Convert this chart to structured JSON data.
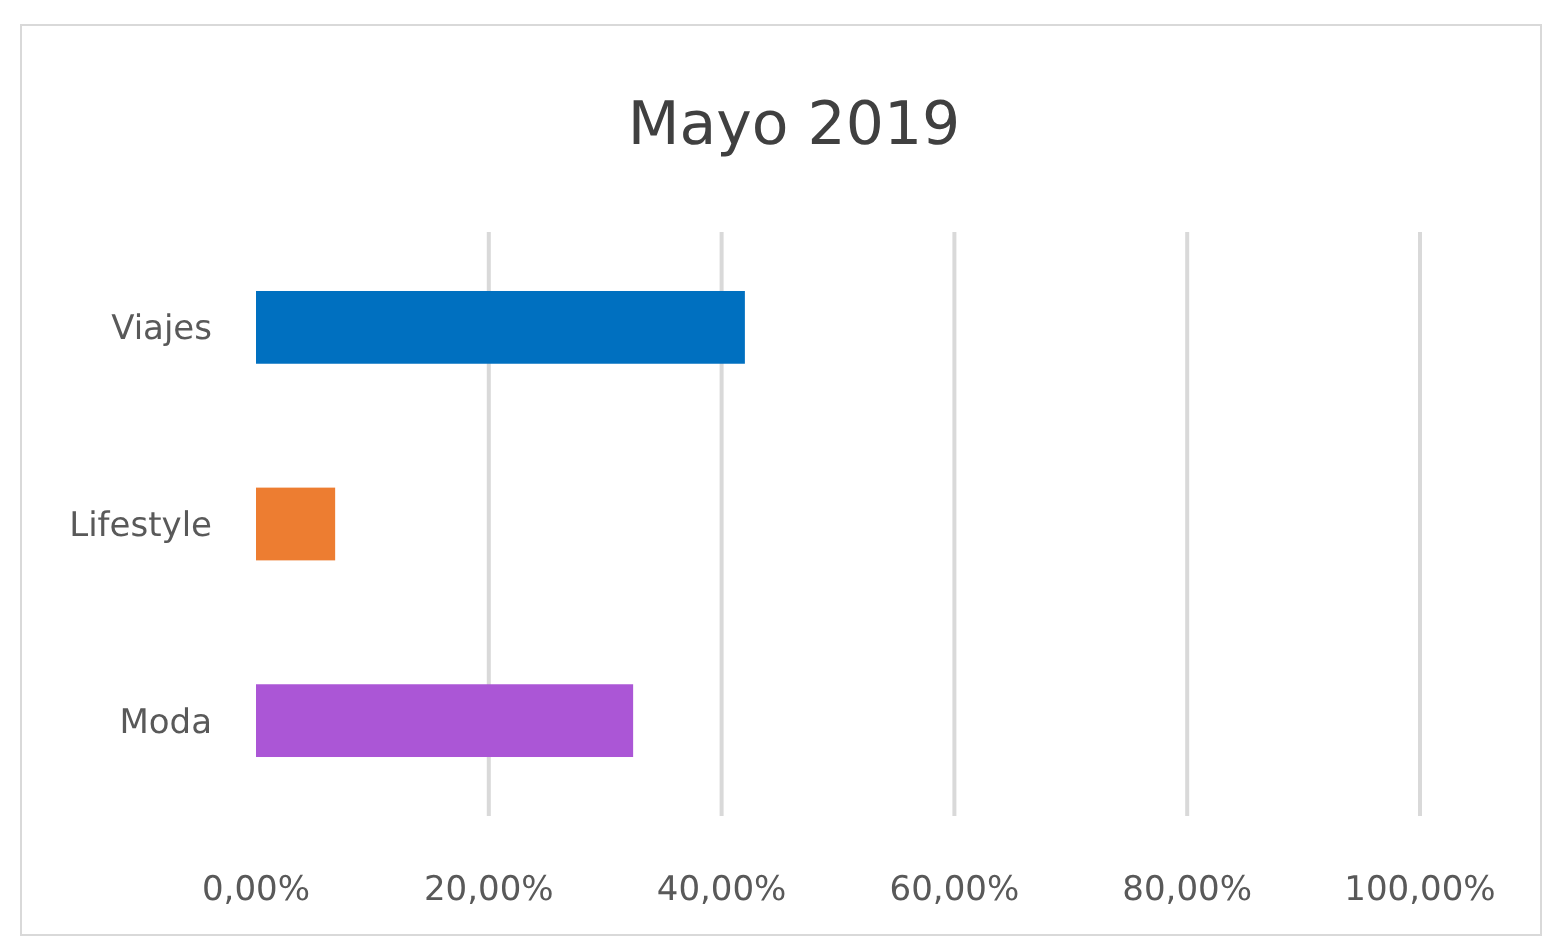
{
  "chart_data": {
    "type": "bar",
    "orientation": "horizontal",
    "title": "Mayo 2019",
    "categories": [
      "Viajes",
      "Lifestyle",
      "Moda"
    ],
    "values": [
      42,
      6.8,
      32.4
    ],
    "colors": [
      "#0070c0",
      "#ed7d31",
      "#ab56d6"
    ],
    "xlim": [
      0,
      100
    ],
    "xticks": [
      {
        "value": 0,
        "label": "0,00%"
      },
      {
        "value": 20,
        "label": "20,00%"
      },
      {
        "value": 40,
        "label": "40,00%"
      },
      {
        "value": 60,
        "label": "60,00%"
      },
      {
        "value": 80,
        "label": "80,00%"
      },
      {
        "value": 100,
        "label": "100,00%"
      }
    ],
    "grid": "x"
  }
}
